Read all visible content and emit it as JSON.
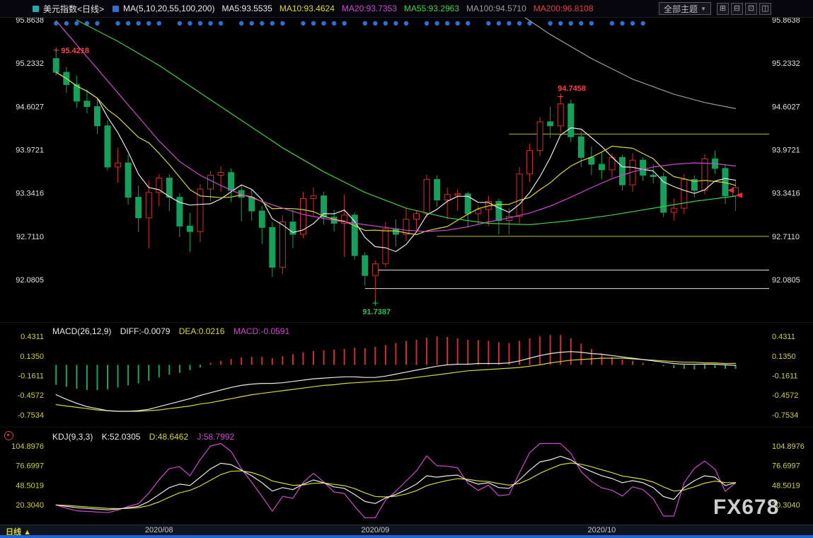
{
  "toolbar": {
    "symbol": "美元指数<日线>",
    "ma_group": "MA(5,10,20,55,100,200)",
    "ma_values": [
      "MA5:93.5535",
      "MA10:93.4624",
      "MA20:93.7353",
      "MA55:93.2963",
      "MA100:94.5710",
      "MA200:96.8108"
    ],
    "themes_button": "全部主题",
    "themes_caret": "▼",
    "window_icons": [
      "⊞",
      "⊟",
      "⊡",
      "◫"
    ]
  },
  "axes": {
    "price": [
      "95.8638",
      "95.2332",
      "94.6027",
      "93.9721",
      "93.3416",
      "92.7110",
      "92.0805"
    ],
    "macd": [
      "0.4311",
      "0.1350",
      "-0.1611",
      "-0.4572",
      "-0.7534"
    ],
    "kdj": [
      "104.8976",
      "76.6997",
      "48.5019",
      "20.3040"
    ]
  },
  "macd": {
    "title": "MACD(26,12,9)",
    "diff_label": "DIFF:-0.0079",
    "dea_label": "DEA:0.0216",
    "macd_label": "MACD:-0.0591"
  },
  "kdj": {
    "title": "KDJ(9,3,3)",
    "k_label": "K:52.0305",
    "d_label": "D:48.6462",
    "j_label": "J:58.7992"
  },
  "bottom": {
    "timeframe": "日线",
    "timeframe_caret": "▲"
  },
  "watermark": "FX678",
  "chart_data": {
    "type": "candlestick",
    "symbol": "美元指数",
    "timeframe": "日线",
    "price_axis_range": [
      91.55,
      95.8638
    ],
    "candles": [
      [
        95.3,
        95.4218,
        95.05,
        95.1
      ],
      [
        95.1,
        95.18,
        94.8,
        94.92
      ],
      [
        94.92,
        95.05,
        94.58,
        94.68
      ],
      [
        94.68,
        94.85,
        94.5,
        94.6
      ],
      [
        94.6,
        94.72,
        94.2,
        94.32
      ],
      [
        94.32,
        94.4,
        93.67,
        93.72
      ],
      [
        93.72,
        94.0,
        93.49,
        93.78
      ],
      [
        93.78,
        93.9,
        93.17,
        93.28
      ],
      [
        93.28,
        93.45,
        92.77,
        92.98
      ],
      [
        92.98,
        93.52,
        92.54,
        93.35
      ],
      [
        93.35,
        93.62,
        93.15,
        93.56
      ],
      [
        93.56,
        93.62,
        93.08,
        93.28
      ],
      [
        93.28,
        93.34,
        92.7,
        92.86
      ],
      [
        92.86,
        93.05,
        92.48,
        92.78
      ],
      [
        92.78,
        93.47,
        92.63,
        93.4
      ],
      [
        93.4,
        93.66,
        93.22,
        93.6
      ],
      [
        93.6,
        93.73,
        93.36,
        93.64
      ],
      [
        93.64,
        93.7,
        93.21,
        93.38
      ],
      [
        93.38,
        93.46,
        92.93,
        93.28
      ],
      [
        93.28,
        93.4,
        92.94,
        93.08
      ],
      [
        93.08,
        93.15,
        92.6,
        92.84
      ],
      [
        92.84,
        92.92,
        92.12,
        92.26
      ],
      [
        92.26,
        93.02,
        92.16,
        92.92
      ],
      [
        92.92,
        93.1,
        92.54,
        92.74
      ],
      [
        92.74,
        93.36,
        92.68,
        93.26
      ],
      [
        93.26,
        93.42,
        93.0,
        93.3
      ],
      [
        93.3,
        93.36,
        92.88,
        92.99
      ],
      [
        92.99,
        93.1,
        92.78,
        92.9
      ],
      [
        92.9,
        93.32,
        92.41,
        93.02
      ],
      [
        93.02,
        93.06,
        92.37,
        92.43
      ],
      [
        92.43,
        92.48,
        91.99,
        92.14
      ],
      [
        92.14,
        92.36,
        91.7387,
        92.31
      ],
      [
        92.31,
        92.92,
        92.26,
        92.82
      ],
      [
        92.82,
        92.96,
        92.56,
        92.74
      ],
      [
        92.74,
        93.12,
        92.64,
        92.96
      ],
      [
        92.96,
        93.08,
        92.8,
        93.04
      ],
      [
        93.04,
        93.61,
        92.98,
        93.54
      ],
      [
        93.54,
        93.6,
        93.14,
        93.24
      ],
      [
        93.24,
        93.42,
        92.96,
        93.32
      ],
      [
        93.32,
        93.4,
        93.08,
        93.33
      ],
      [
        93.33,
        93.36,
        92.84,
        93.04
      ],
      [
        93.04,
        93.16,
        92.88,
        93.1
      ],
      [
        93.1,
        93.3,
        92.86,
        93.22
      ],
      [
        93.22,
        93.26,
        92.74,
        92.94
      ],
      [
        92.94,
        93.12,
        92.74,
        93.0
      ],
      [
        93.0,
        93.72,
        92.9,
        93.62
      ],
      [
        93.62,
        94.06,
        93.5,
        93.96
      ],
      [
        93.96,
        94.45,
        93.88,
        94.38
      ],
      [
        94.38,
        94.6,
        94.14,
        94.32
      ],
      [
        94.32,
        94.7458,
        94.22,
        94.64
      ],
      [
        94.64,
        94.7,
        94.08,
        94.16
      ],
      [
        94.16,
        94.24,
        93.72,
        93.86
      ],
      [
        93.86,
        94.02,
        93.6,
        93.76
      ],
      [
        93.76,
        93.94,
        93.54,
        93.68
      ],
      [
        93.68,
        93.92,
        93.56,
        93.86
      ],
      [
        93.86,
        93.9,
        93.38,
        93.46
      ],
      [
        93.46,
        93.92,
        93.36,
        93.82
      ],
      [
        93.82,
        93.86,
        93.52,
        93.6
      ],
      [
        93.6,
        93.76,
        93.48,
        93.58
      ],
      [
        93.58,
        93.64,
        92.99,
        93.06
      ],
      [
        93.06,
        93.26,
        92.94,
        93.12
      ],
      [
        93.12,
        93.62,
        93.04,
        93.54
      ],
      [
        93.54,
        93.6,
        93.28,
        93.38
      ],
      [
        93.38,
        93.91,
        93.32,
        93.84
      ],
      [
        93.84,
        93.96,
        93.62,
        93.7
      ],
      [
        93.7,
        93.76,
        93.18,
        93.3
      ],
      [
        93.3,
        93.52,
        93.08,
        93.42
      ]
    ],
    "date_ticks": [
      {
        "label": "2020/08",
        "bar": 10
      },
      {
        "label": "2020/09",
        "bar": 31
      },
      {
        "label": "2020/10",
        "bar": 53
      }
    ],
    "event_dot_bars": [
      0,
      1,
      2,
      3,
      4,
      6,
      7,
      8,
      9,
      10,
      12,
      13,
      14,
      15,
      16,
      18,
      19,
      20,
      21,
      22,
      24,
      25,
      26,
      27,
      28,
      30,
      31,
      32,
      33,
      34,
      36,
      37,
      38,
      39,
      40,
      42,
      43,
      44,
      45,
      46,
      48,
      49,
      50,
      51,
      52,
      54,
      55,
      56,
      57
    ],
    "levels": [
      {
        "value": 94.2,
        "from_bar": 44,
        "color": "#b8b832"
      },
      {
        "value": 92.711,
        "from_bar": 37,
        "color": "#b8b832"
      },
      {
        "value": 92.22,
        "from_bar": 31,
        "color": "#e0e0e0"
      },
      {
        "value": 91.95,
        "from_bar": 30,
        "color": "#e0e0e0"
      }
    ],
    "annotations": [
      {
        "text": "95.4218",
        "bar": 0,
        "value": 95.4218,
        "color": "#ff4040",
        "pos": "right"
      },
      {
        "text": "94.7458",
        "bar": 49,
        "value": 94.7458,
        "color": "#ff4040",
        "pos": "top"
      },
      {
        "text": "91.7387",
        "bar": 31,
        "value": 91.7387,
        "color": "#2fbf5f",
        "pos": "bottom"
      }
    ],
    "price_marker": {
      "value": 93.34,
      "color": "#e03030"
    },
    "ma": {
      "ma5": {
        "color": "#e8e8e8",
        "period": 5
      },
      "ma10": {
        "color": "#d6d63a",
        "period": 10
      },
      "ma20": {
        "color": "#d048d0",
        "points": [
          [
            0,
            95.85
          ],
          [
            2,
            95.5
          ],
          [
            4,
            95.15
          ],
          [
            6,
            94.8
          ],
          [
            8,
            94.45
          ],
          [
            10,
            94.1
          ],
          [
            12,
            93.8
          ],
          [
            14,
            93.6
          ],
          [
            16,
            93.45
          ],
          [
            18,
            93.32
          ],
          [
            20,
            93.22
          ],
          [
            22,
            93.12
          ],
          [
            24,
            93.03
          ],
          [
            26,
            92.97
          ],
          [
            28,
            92.92
          ],
          [
            30,
            92.88
          ],
          [
            32,
            92.84
          ],
          [
            34,
            92.8
          ],
          [
            36,
            92.78
          ],
          [
            38,
            92.8
          ],
          [
            40,
            92.85
          ],
          [
            42,
            92.92
          ],
          [
            44,
            92.98
          ],
          [
            46,
            93.05
          ],
          [
            48,
            93.15
          ],
          [
            50,
            93.28
          ],
          [
            52,
            93.42
          ],
          [
            54,
            93.55
          ],
          [
            56,
            93.65
          ],
          [
            58,
            93.72
          ],
          [
            60,
            93.76
          ],
          [
            62,
            93.78
          ],
          [
            64,
            93.77
          ],
          [
            66,
            93.7353
          ]
        ]
      },
      "ma55": {
        "color": "#3fd03f",
        "points": [
          [
            2,
            95.86
          ],
          [
            6,
            95.55
          ],
          [
            10,
            95.2
          ],
          [
            14,
            94.8
          ],
          [
            18,
            94.4
          ],
          [
            22,
            94.0
          ],
          [
            26,
            93.65
          ],
          [
            30,
            93.35
          ],
          [
            34,
            93.12
          ],
          [
            38,
            92.98
          ],
          [
            42,
            92.9
          ],
          [
            46,
            92.88
          ],
          [
            50,
            92.94
          ],
          [
            54,
            93.02
          ],
          [
            58,
            93.12
          ],
          [
            62,
            93.22
          ],
          [
            66,
            93.2963
          ]
        ]
      },
      "ma100": {
        "color": "#9a9a9a",
        "points": [
          [
            40,
            96.5
          ],
          [
            44,
            96.05
          ],
          [
            48,
            95.65
          ],
          [
            52,
            95.3
          ],
          [
            56,
            95.0
          ],
          [
            60,
            94.78
          ],
          [
            63,
            94.66
          ],
          [
            66,
            94.571
          ]
        ]
      }
    },
    "macd": {
      "diff": [
        -0.45,
        -0.52,
        -0.58,
        -0.63,
        -0.66,
        -0.69,
        -0.7,
        -0.7,
        -0.69,
        -0.67,
        -0.63,
        -0.59,
        -0.55,
        -0.51,
        -0.46,
        -0.42,
        -0.38,
        -0.34,
        -0.31,
        -0.29,
        -0.28,
        -0.28,
        -0.27,
        -0.25,
        -0.23,
        -0.21,
        -0.2,
        -0.19,
        -0.18,
        -0.18,
        -0.19,
        -0.19,
        -0.17,
        -0.14,
        -0.11,
        -0.08,
        -0.05,
        -0.02,
        0.0,
        0.01,
        0.01,
        0.02,
        0.02,
        0.02,
        0.03,
        0.06,
        0.1,
        0.14,
        0.17,
        0.19,
        0.2,
        0.19,
        0.17,
        0.16,
        0.14,
        0.12,
        0.1,
        0.08,
        0.06,
        0.04,
        0.02,
        0.01,
        0.01,
        0.01,
        0.01,
        0.0,
        -0.0079
      ],
      "dea": [
        -0.6,
        -0.62,
        -0.64,
        -0.66,
        -0.68,
        -0.69,
        -0.7,
        -0.7,
        -0.7,
        -0.69,
        -0.68,
        -0.66,
        -0.64,
        -0.62,
        -0.59,
        -0.57,
        -0.54,
        -0.51,
        -0.48,
        -0.45,
        -0.43,
        -0.41,
        -0.39,
        -0.37,
        -0.35,
        -0.33,
        -0.31,
        -0.3,
        -0.28,
        -0.27,
        -0.26,
        -0.25,
        -0.24,
        -0.23,
        -0.21,
        -0.19,
        -0.17,
        -0.15,
        -0.13,
        -0.11,
        -0.09,
        -0.08,
        -0.07,
        -0.06,
        -0.05,
        -0.04,
        -0.02,
        0.0,
        0.03,
        0.05,
        0.07,
        0.08,
        0.09,
        0.1,
        0.1,
        0.1,
        0.09,
        0.08,
        0.07,
        0.06,
        0.05,
        0.04,
        0.04,
        0.03,
        0.03,
        0.02,
        0.0216
      ],
      "hist": [
        -0.3,
        -0.33,
        -0.36,
        -0.38,
        -0.38,
        -0.37,
        -0.34,
        -0.31,
        -0.28,
        -0.24,
        -0.19,
        -0.15,
        -0.12,
        -0.08,
        -0.04,
        0.03,
        0.06,
        0.09,
        0.11,
        0.12,
        0.12,
        0.1,
        0.13,
        0.16,
        0.19,
        0.21,
        0.22,
        0.23,
        0.24,
        0.26,
        0.25,
        0.27,
        0.3,
        0.33,
        0.36,
        0.38,
        0.41,
        0.43,
        0.42,
        0.4,
        0.38,
        0.37,
        0.36,
        0.34,
        0.33,
        0.36,
        0.4,
        0.43,
        0.45,
        0.45,
        0.4,
        0.32,
        0.24,
        0.17,
        0.12,
        0.08,
        0.06,
        0.03,
        0.01,
        -0.02,
        -0.05,
        -0.06,
        -0.07,
        -0.06,
        -0.05,
        -0.06,
        -0.059
      ],
      "colors": {
        "diff": "#e8e8e8",
        "dea": "#d6d63a",
        "up": "#d03030",
        "down": "#18a85a"
      }
    },
    "kdj": {
      "k": [
        20,
        18,
        16,
        15,
        14,
        13,
        14,
        16,
        18,
        25,
        35,
        45,
        50,
        48,
        60,
        72,
        80,
        78,
        70,
        62,
        52,
        40,
        45,
        42,
        50,
        56,
        52,
        46,
        44,
        35,
        25,
        22,
        30,
        35,
        42,
        50,
        62,
        60,
        62,
        63,
        55,
        50,
        52,
        45,
        44,
        56,
        70,
        82,
        85,
        90,
        85,
        75,
        68,
        62,
        58,
        52,
        55,
        52,
        45,
        32,
        28,
        45,
        55,
        62,
        60,
        48,
        52.0305
      ],
      "colors": {
        "k": "#e8e8e8",
        "d": "#d6d63a",
        "j": "#d048d0"
      }
    },
    "colors": {
      "up": "#d03030",
      "down": "#14a05a",
      "event_dot": "#2e6fd6"
    }
  }
}
